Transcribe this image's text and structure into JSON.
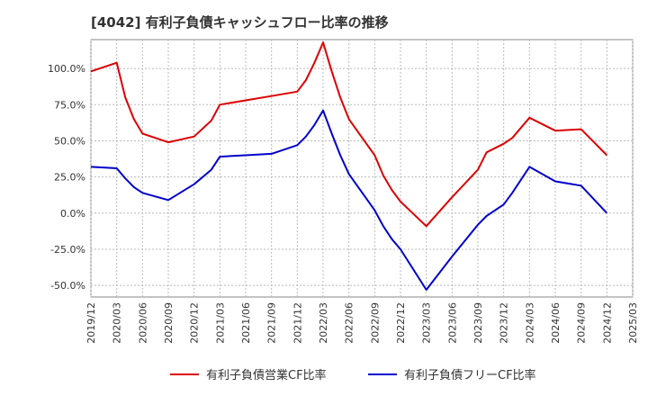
{
  "title": "[4042]  有利子負債キャッシュフロー比率の推移",
  "chart_data": {
    "type": "line",
    "title": "[4042]  有利子負債キャッシュフロー比率の推移",
    "xlabel": "",
    "ylabel": "",
    "x_tick_labels": [
      "2019/12",
      "2020/03",
      "2020/06",
      "2020/09",
      "2020/12",
      "2021/03",
      "2021/06",
      "2021/09",
      "2021/12",
      "2022/03",
      "2022/06",
      "2022/09",
      "2022/12",
      "2023/03",
      "2023/06",
      "2023/09",
      "2023/12",
      "2024/03",
      "2024/06",
      "2024/09",
      "2024/12",
      "2025/03"
    ],
    "y_tick_labels": [
      "100.0%",
      "75.0%",
      "50.0%",
      "25.0%",
      "0.0%",
      "-25.0%",
      "-50.0%"
    ],
    "y_ticks": [
      100,
      75,
      50,
      25,
      0,
      -25,
      -50
    ],
    "ylim": [
      -58,
      120
    ],
    "grid": true,
    "legend_position": "bottom",
    "series": [
      {
        "name": "有利子負債営業CF比率",
        "color": "#dd0000",
        "points": [
          [
            "2019/12",
            98
          ],
          [
            "2020/03",
            104
          ],
          [
            "2020/04",
            80
          ],
          [
            "2020/05",
            65
          ],
          [
            "2020/06",
            55
          ],
          [
            "2020/09",
            49
          ],
          [
            "2020/12",
            53
          ],
          [
            "2021/02",
            64
          ],
          [
            "2021/03",
            75
          ],
          [
            "2021/06",
            78
          ],
          [
            "2021/09",
            81
          ],
          [
            "2021/12",
            84
          ],
          [
            "2022/01",
            92
          ],
          [
            "2022/02",
            104
          ],
          [
            "2022/03",
            118
          ],
          [
            "2022/04",
            98
          ],
          [
            "2022/05",
            80
          ],
          [
            "2022/06",
            65
          ],
          [
            "2022/09",
            40
          ],
          [
            "2022/10",
            26
          ],
          [
            "2022/11",
            16
          ],
          [
            "2022/12",
            8
          ],
          [
            "2023/03",
            -9
          ],
          [
            "2023/06",
            11
          ],
          [
            "2023/09",
            30
          ],
          [
            "2023/10",
            42
          ],
          [
            "2023/12",
            48
          ],
          [
            "2024/01",
            52
          ],
          [
            "2024/03",
            66
          ],
          [
            "2024/06",
            57
          ],
          [
            "2024/09",
            58
          ],
          [
            "2024/12",
            40
          ]
        ]
      },
      {
        "name": "有利子負債フリーCF比率",
        "color": "#0000cc",
        "points": [
          [
            "2019/12",
            32
          ],
          [
            "2020/03",
            31
          ],
          [
            "2020/04",
            24
          ],
          [
            "2020/05",
            18
          ],
          [
            "2020/06",
            14
          ],
          [
            "2020/09",
            9
          ],
          [
            "2020/12",
            20
          ],
          [
            "2021/02",
            30
          ],
          [
            "2021/03",
            39
          ],
          [
            "2021/06",
            40
          ],
          [
            "2021/09",
            41
          ],
          [
            "2021/12",
            47
          ],
          [
            "2022/01",
            53
          ],
          [
            "2022/02",
            61
          ],
          [
            "2022/03",
            71
          ],
          [
            "2022/04",
            55
          ],
          [
            "2022/05",
            40
          ],
          [
            "2022/06",
            27
          ],
          [
            "2022/09",
            2
          ],
          [
            "2022/10",
            -9
          ],
          [
            "2022/11",
            -18
          ],
          [
            "2022/12",
            -25
          ],
          [
            "2023/03",
            -53
          ],
          [
            "2023/06",
            -30
          ],
          [
            "2023/09",
            -8
          ],
          [
            "2023/10",
            -2
          ],
          [
            "2023/12",
            6
          ],
          [
            "2024/01",
            14
          ],
          [
            "2024/03",
            32
          ],
          [
            "2024/06",
            22
          ],
          [
            "2024/09",
            19
          ],
          [
            "2024/12",
            0
          ]
        ]
      }
    ]
  }
}
